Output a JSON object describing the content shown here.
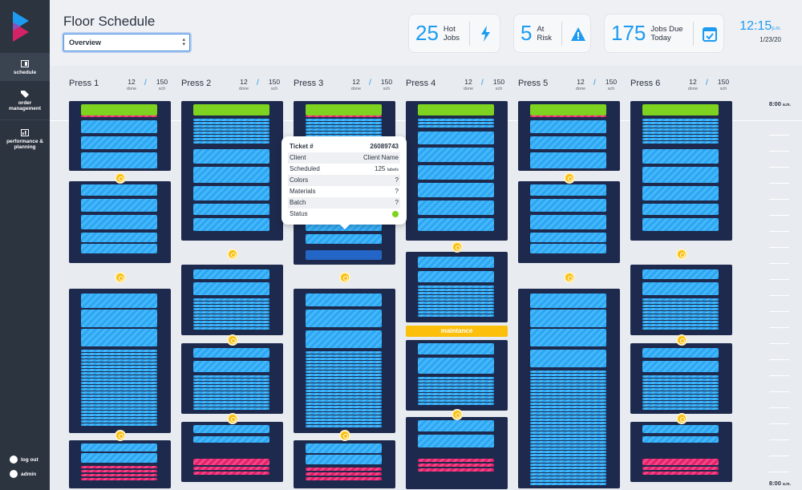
{
  "sidebar": {
    "items": [
      {
        "name": "schedule",
        "label": "schedule"
      },
      {
        "name": "order-management",
        "label": "order management"
      },
      {
        "name": "performance-planning",
        "label": "performance & planning"
      }
    ],
    "logout_label": "log out",
    "admin_label": "admin"
  },
  "header": {
    "title": "Floor Schedule",
    "view_select": "Overview",
    "stats": [
      {
        "value": "25",
        "label_1": "Hot",
        "label_2": "Jobs",
        "icon": "bolt-icon"
      },
      {
        "value": "5",
        "label_1": "At",
        "label_2": "Risk",
        "icon": "warning-icon"
      },
      {
        "value": "175",
        "label_1": "Jobs Due",
        "label_2": "Today",
        "icon": "calendar-check-icon"
      }
    ],
    "clock": {
      "time": "12:15",
      "suffix": "p.m.",
      "date": "1/23/20"
    }
  },
  "presses": [
    {
      "name": "Press 1",
      "done": "12",
      "done_label": "done",
      "sch": "150",
      "sch_label": "sch"
    },
    {
      "name": "Press 2",
      "done": "12",
      "done_label": "done",
      "sch": "150",
      "sch_label": "sch"
    },
    {
      "name": "Press 3",
      "done": "12",
      "done_label": "done",
      "sch": "150",
      "sch_label": "sch"
    },
    {
      "name": "Press 4",
      "done": "12",
      "done_label": "done",
      "sch": "150",
      "sch_label": "sch"
    },
    {
      "name": "Press 5",
      "done": "12",
      "done_label": "done",
      "sch": "150",
      "sch_label": "sch"
    },
    {
      "name": "Press 6",
      "done": "12",
      "done_label": "done",
      "sch": "150",
      "sch_label": "sch"
    }
  ],
  "maintenance_label": "maintance",
  "timeline": {
    "top_time": "8:00",
    "top_suffix": "a.m.",
    "bottom_time": "8:00",
    "bottom_suffix": "a.m."
  },
  "tooltip": {
    "ticket_label": "Ticket #",
    "ticket_value": "26089743",
    "client_label": "Client",
    "client_value": "Client Name",
    "scheduled_label": "Scheduled",
    "scheduled_value": "125",
    "scheduled_unit": "labels",
    "colors_label": "Colors",
    "colors_value": "?",
    "materials_label": "Materials",
    "materials_value": "?",
    "batch_label": "Batch",
    "batch_value": "?",
    "status_label": "Status",
    "status_color": "#7ed321"
  },
  "colors": {
    "accent": "#1d9bf0",
    "job_bg": "#1d2a4d",
    "green": "#7ed321",
    "pink": "#e5216a",
    "changeover": "#fbbf0c"
  }
}
